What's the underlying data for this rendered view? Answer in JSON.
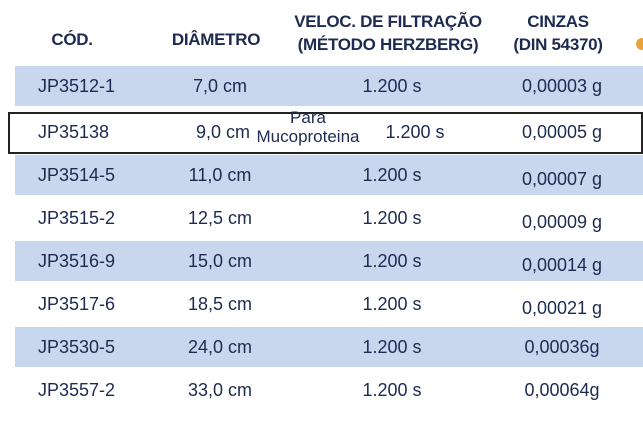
{
  "header": [
    [
      "CÓD."
    ],
    [
      "DIÂMETRO"
    ],
    [
      "VELOC. DE FILTRAÇÃO",
      "(MÉTODO HERZBERG)"
    ],
    [
      "CINZAS",
      "(DIN 54370)"
    ]
  ],
  "table": {
    "rows": [
      [
        "JP3512-1",
        "7,0 cm",
        "1.200 s",
        "0,00003 g"
      ],
      [
        "JP35138",
        "9,0 cm",
        "1.200 s",
        "0,00005 g"
      ],
      [
        "JP3514-5",
        "11,0 cm",
        "1.200 s",
        "0,00007 g"
      ],
      [
        "JP3515-2",
        "12,5 cm",
        "1.200 s",
        "0,00009 g"
      ],
      [
        "JP3516-9",
        "15,0 cm",
        "1.200 s",
        "0,00014 g"
      ],
      [
        "JP3517-6",
        "18,5 cm",
        "1.200 s",
        "0,00021 g"
      ],
      [
        "JP3530-5",
        "24,0 cm",
        "1.200 s",
        "0,00036g"
      ],
      [
        "JP3557-2",
        "33,0 cm",
        "1.200 s",
        "0,00064g"
      ]
    ]
  },
  "annotation": [
    "Para",
    "Mucoproteina"
  ]
}
